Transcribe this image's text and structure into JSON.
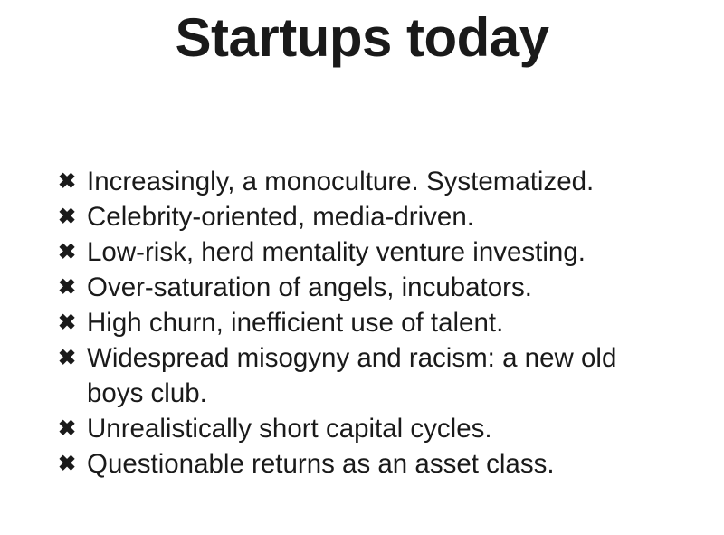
{
  "slide": {
    "title": "Startups today",
    "bullet_icon": "heavy-x-mark-icon",
    "bullet_glyph": "✖",
    "items": [
      "Increasingly, a monoculture. Systematized.",
      "Celebrity-oriented, media-driven.",
      "Low-risk, herd mentality venture investing.",
      "Over-saturation of angels, incubators.",
      "High churn, inefficient use of talent.",
      "Widespread misogyny and racism: a new old boys club.",
      "Unrealistically short capital cycles.",
      "Questionable returns as an asset class."
    ]
  }
}
